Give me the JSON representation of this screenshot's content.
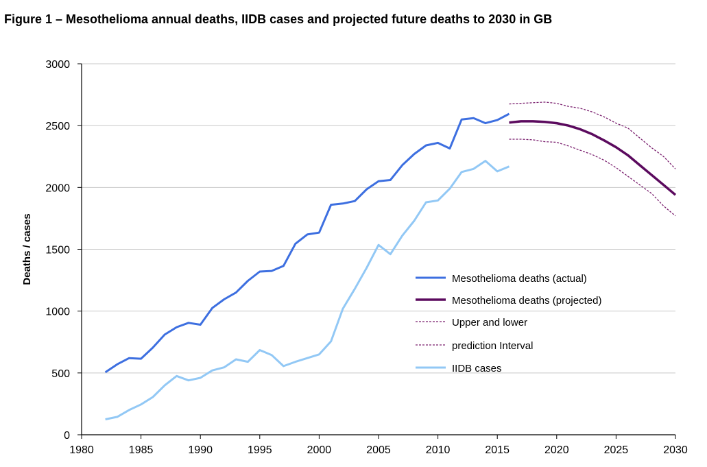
{
  "chart_data": {
    "type": "line",
    "title": "Figure 1 – Mesothelioma annual deaths, IIDB cases and projected future deaths to 2030 in GB",
    "ylabel": "Deaths / cases",
    "xlabel": "",
    "xlim": [
      1980,
      2030
    ],
    "ylim": [
      0,
      3000
    ],
    "xticks": [
      "1980",
      "1985",
      "1990",
      "1995",
      "2000",
      "2005",
      "2010",
      "2015",
      "2020",
      "2025",
      "2030"
    ],
    "yticks": [
      "0",
      "500",
      "1000",
      "1500",
      "2000",
      "2500",
      "3000"
    ],
    "grid": "horizontal",
    "legend_position": "right",
    "colors": {
      "actual": "#3d6fe0",
      "projected": "#5b0a5e",
      "interval": "#7a1f6e",
      "iidb": "#92c8f5"
    },
    "series": [
      {
        "name": "Mesothelioma deaths (actual)",
        "key": "actual",
        "style": "solid",
        "x": [
          1982,
          1983,
          1984,
          1985,
          1986,
          1987,
          1988,
          1989,
          1990,
          1991,
          1992,
          1993,
          1994,
          1995,
          1996,
          1997,
          1998,
          1999,
          2000,
          2001,
          2002,
          2003,
          2004,
          2005,
          2006,
          2007,
          2008,
          2009,
          2010,
          2011,
          2012,
          2013,
          2014,
          2015,
          2016
        ],
        "values": [
          505,
          570,
          620,
          615,
          705,
          810,
          870,
          905,
          890,
          1025,
          1095,
          1150,
          1245,
          1320,
          1325,
          1365,
          1545,
          1620,
          1635,
          1860,
          1870,
          1890,
          1985,
          2050,
          2060,
          2180,
          2270,
          2340,
          2360,
          2315,
          2550,
          2560,
          2520,
          2545,
          2595
        ]
      },
      {
        "name": "Mesothelioma deaths (projected)",
        "key": "projected",
        "style": "solid-thick",
        "x": [
          2016,
          2017,
          2018,
          2019,
          2020,
          2021,
          2022,
          2023,
          2024,
          2025,
          2026,
          2027,
          2028,
          2029,
          2030
        ],
        "values": [
          2525,
          2535,
          2535,
          2530,
          2520,
          2500,
          2470,
          2430,
          2380,
          2325,
          2260,
          2180,
          2100,
          2020,
          1940
        ]
      },
      {
        "name": "Upper and lower",
        "key": "interval",
        "style": "dashed",
        "x": [
          2016,
          2017,
          2018,
          2019,
          2020,
          2021,
          2022,
          2023,
          2024,
          2025,
          2026,
          2027,
          2028,
          2029,
          2030
        ],
        "values": [
          2675,
          2680,
          2685,
          2690,
          2680,
          2655,
          2640,
          2610,
          2570,
          2520,
          2480,
          2400,
          2320,
          2250,
          2150
        ]
      },
      {
        "name": "prediction Interval",
        "key": "interval",
        "style": "dashed",
        "x": [
          2016,
          2017,
          2018,
          2019,
          2020,
          2021,
          2022,
          2023,
          2024,
          2025,
          2026,
          2027,
          2028,
          2029,
          2030
        ],
        "values": [
          2390,
          2390,
          2385,
          2370,
          2365,
          2335,
          2300,
          2265,
          2220,
          2160,
          2090,
          2020,
          1950,
          1850,
          1770
        ]
      },
      {
        "name": "IIDB cases",
        "key": "iidb",
        "style": "solid",
        "x": [
          1982,
          1983,
          1984,
          1985,
          1986,
          1987,
          1988,
          1989,
          1990,
          1991,
          1992,
          1993,
          1994,
          1995,
          1996,
          1997,
          1998,
          1999,
          2000,
          2001,
          2002,
          2003,
          2004,
          2005,
          2006,
          2007,
          2008,
          2009,
          2010,
          2011,
          2012,
          2013,
          2014,
          2015,
          2016
        ],
        "values": [
          125,
          145,
          200,
          245,
          305,
          400,
          475,
          440,
          460,
          520,
          545,
          610,
          590,
          685,
          645,
          555,
          590,
          620,
          650,
          755,
          1020,
          1180,
          1350,
          1535,
          1460,
          1610,
          1730,
          1880,
          1895,
          1990,
          2125,
          2150,
          2215,
          2130,
          2170
        ]
      }
    ]
  }
}
